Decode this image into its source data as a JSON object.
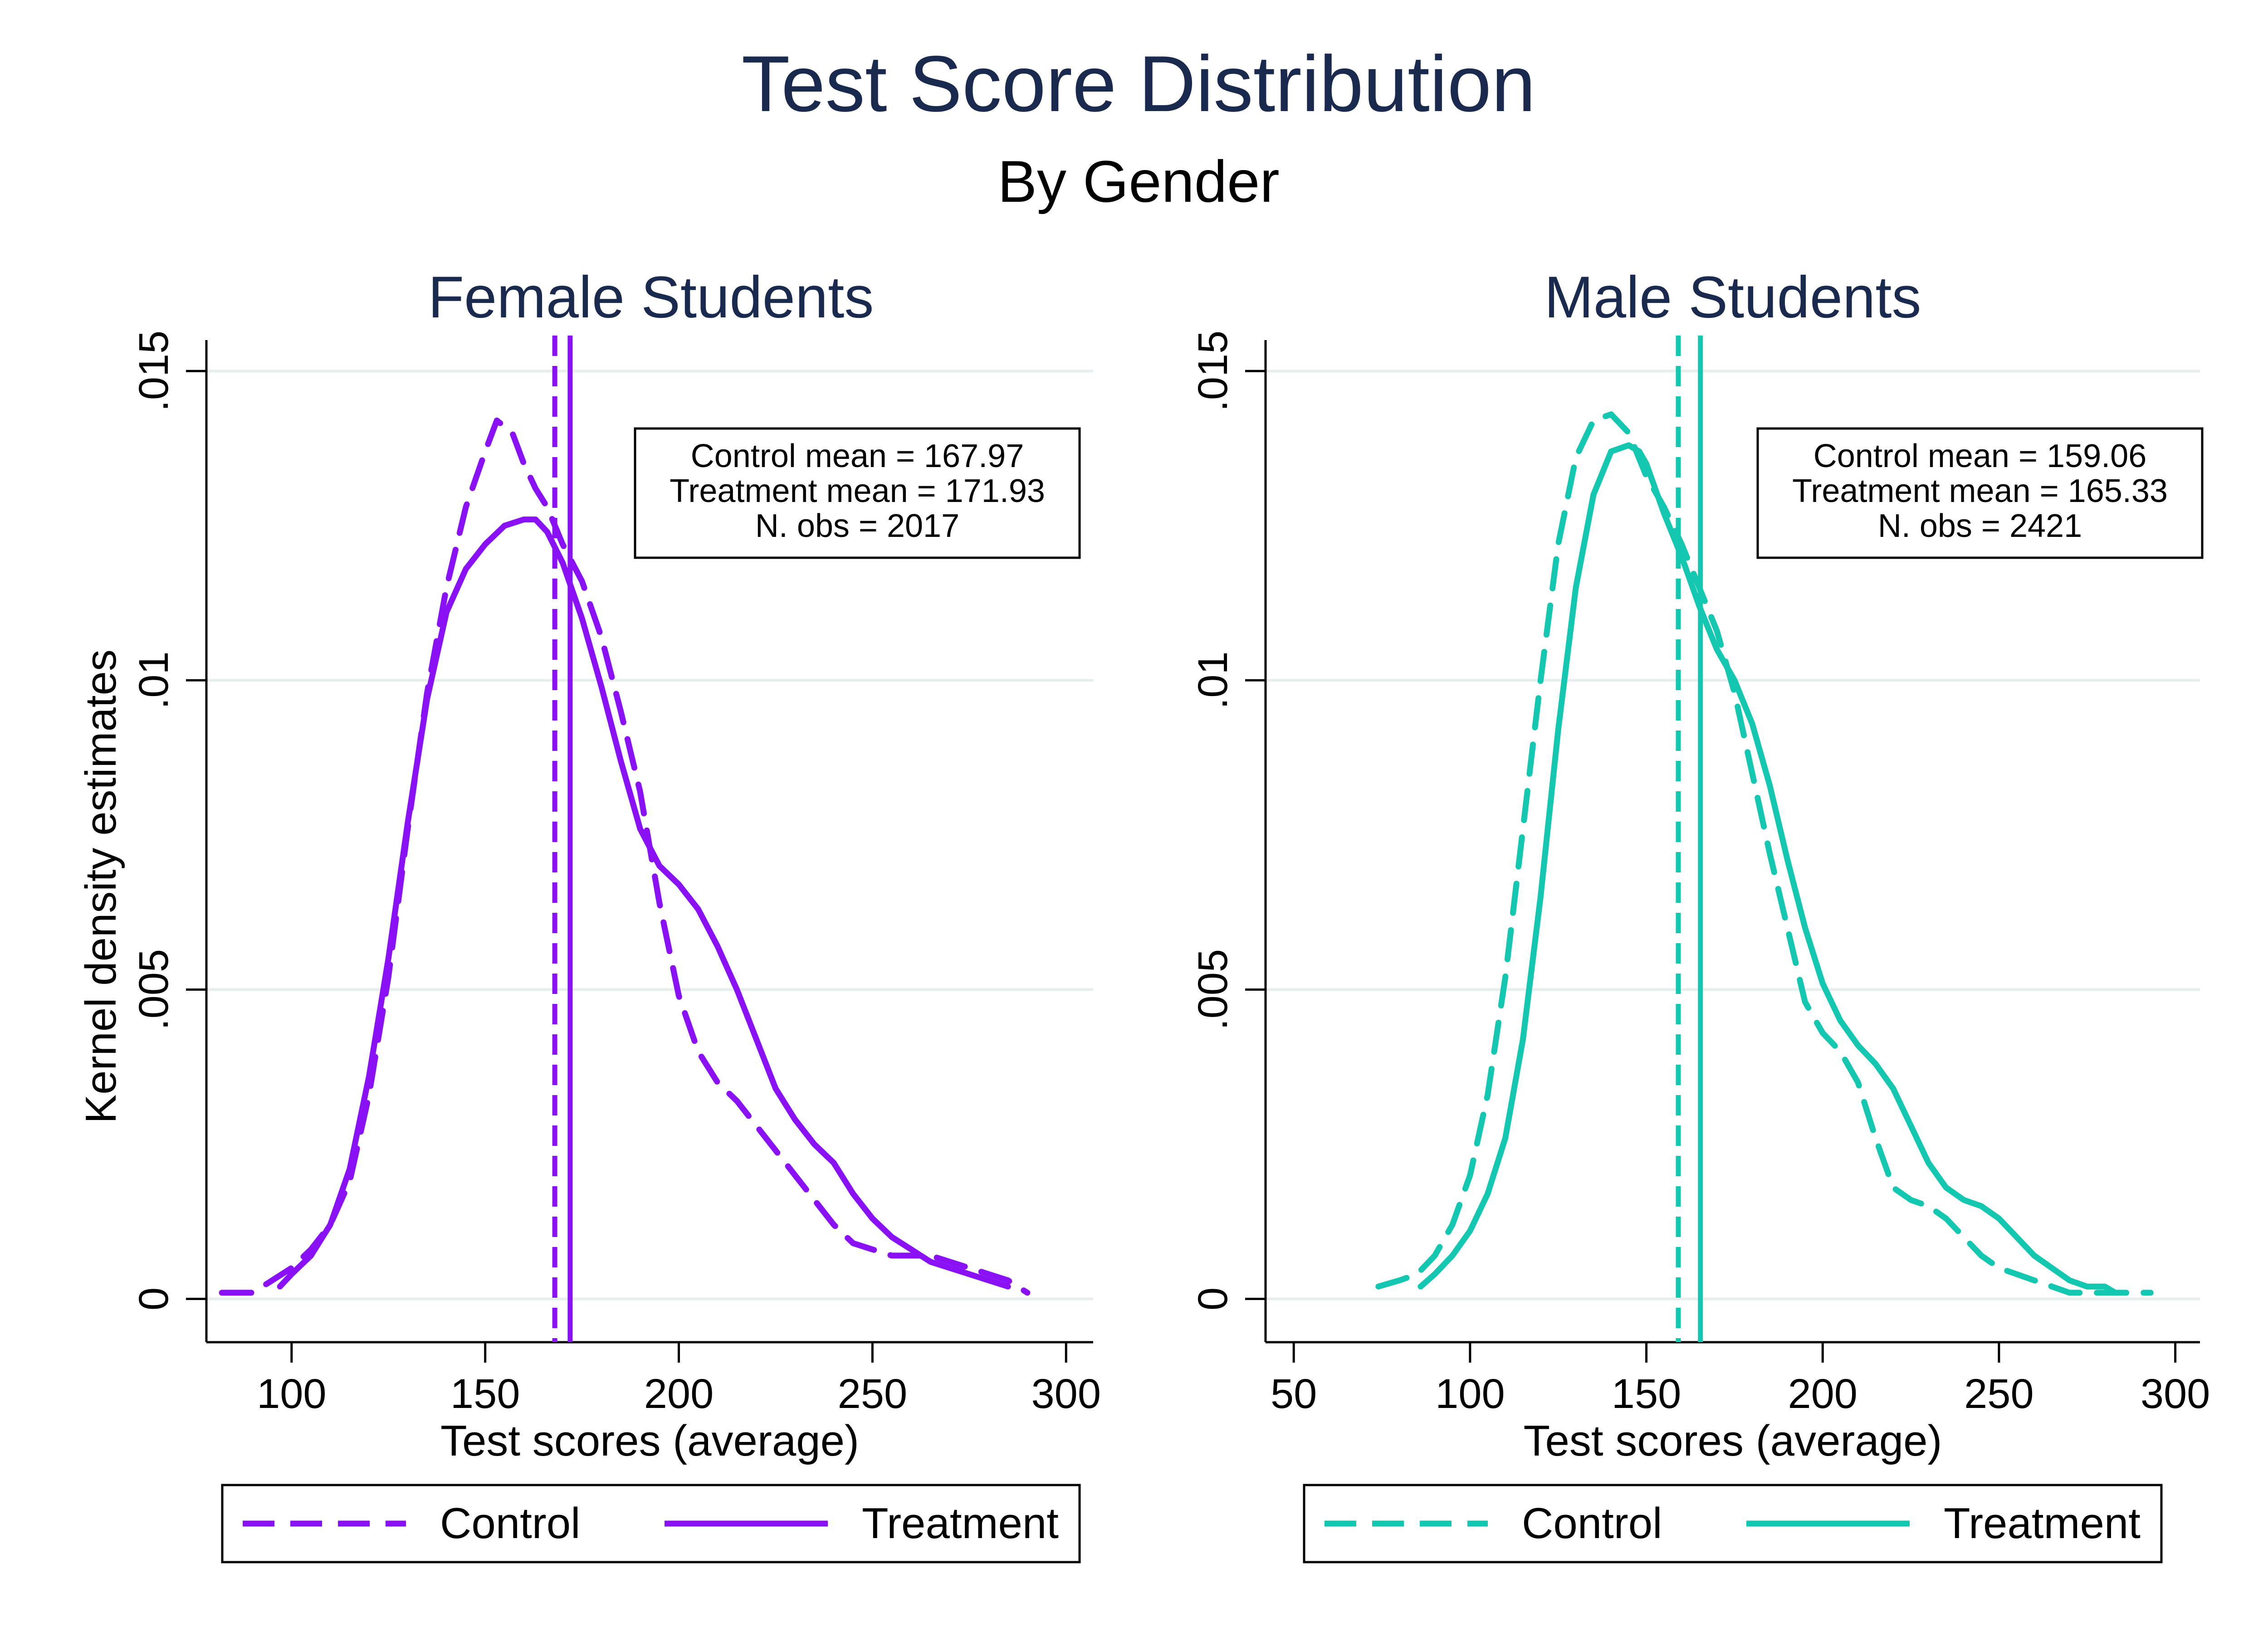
{
  "figure": {
    "title": "Test Score Distribution",
    "subtitle": "By Gender",
    "ylabel": "Kernel density estimates",
    "title_color": "#1a2a4f"
  },
  "chart_data": [
    {
      "type": "line",
      "panel_title": "Female Students",
      "xlabel": "Test scores (average)",
      "ylabel": "Kernel density estimates",
      "xlim": [
        78,
        307
      ],
      "ylim": [
        -0.0007,
        0.0155
      ],
      "xticks": [
        100,
        150,
        200,
        250,
        300
      ],
      "xtick_labels": [
        "100",
        "150",
        "200",
        "250",
        "300"
      ],
      "yticks": [
        0,
        0.005,
        0.01,
        0.015
      ],
      "ytick_labels": [
        "0",
        ".005",
        ".01",
        ".015"
      ],
      "grid": true,
      "color": "#8a10f5",
      "series": [
        {
          "name": "Control",
          "style": "dashed",
          "x": [
            82,
            90,
            95,
            100,
            105,
            110,
            115,
            120,
            125,
            130,
            135,
            140,
            145,
            150,
            153,
            157,
            160,
            163,
            166,
            170,
            175,
            180,
            185,
            190,
            195,
            200,
            205,
            210,
            215,
            220,
            225,
            230,
            235,
            240,
            245,
            250,
            255,
            260,
            265,
            270,
            275,
            280,
            285,
            290
          ],
          "y": [
            0.0001,
            0.0001,
            0.0003,
            0.0005,
            0.0008,
            0.0012,
            0.0019,
            0.0033,
            0.0052,
            0.0076,
            0.0098,
            0.0115,
            0.0128,
            0.0137,
            0.0142,
            0.014,
            0.0135,
            0.0131,
            0.0128,
            0.0122,
            0.0116,
            0.0107,
            0.0095,
            0.0082,
            0.0064,
            0.0049,
            0.004,
            0.0035,
            0.0032,
            0.0028,
            0.0024,
            0.002,
            0.0016,
            0.0012,
            0.0009,
            0.0008,
            0.0007,
            0.0007,
            0.0007,
            0.0006,
            0.0005,
            0.0004,
            0.0003,
            0.0001
          ]
        },
        {
          "name": "Treatment",
          "style": "solid",
          "x": [
            97,
            100,
            105,
            110,
            115,
            120,
            125,
            130,
            135,
            140,
            145,
            150,
            155,
            160,
            163,
            166,
            170,
            175,
            180,
            185,
            190,
            195,
            200,
            205,
            210,
            215,
            220,
            225,
            230,
            235,
            240,
            245,
            250,
            255,
            260,
            265,
            270,
            275,
            280,
            285
          ],
          "y": [
            0.0002,
            0.0004,
            0.0007,
            0.0012,
            0.0021,
            0.0036,
            0.0055,
            0.0077,
            0.0097,
            0.0111,
            0.0118,
            0.0122,
            0.0125,
            0.0126,
            0.0126,
            0.0124,
            0.0119,
            0.011,
            0.0099,
            0.0087,
            0.0076,
            0.007,
            0.0067,
            0.0063,
            0.0057,
            0.005,
            0.0042,
            0.0034,
            0.0029,
            0.0025,
            0.0022,
            0.0017,
            0.0013,
            0.001,
            0.0008,
            0.0006,
            0.0005,
            0.0004,
            0.0003,
            0.0002
          ]
        }
      ],
      "vlines": [
        {
          "name": "Control",
          "x": 167.97,
          "style": "dashed"
        },
        {
          "name": "Treatment",
          "x": 171.93,
          "style": "solid"
        }
      ],
      "annotation": [
        "Control mean = 167.97",
        "Treatment mean = 171.93",
        "N. obs = 2017"
      ],
      "legend": [
        "Control",
        "Treatment"
      ],
      "legend_position": "bottom"
    },
    {
      "type": "line",
      "panel_title": "Male Students",
      "xlabel": "Test scores (average)",
      "ylabel": "",
      "xlim": [
        42,
        307
      ],
      "ylim": [
        -0.0007,
        0.0155
      ],
      "xticks": [
        50,
        100,
        150,
        200,
        250,
        300
      ],
      "xtick_labels": [
        "50",
        "100",
        "150",
        "200",
        "250",
        "300"
      ],
      "yticks": [
        0,
        0.005,
        0.01,
        0.015
      ],
      "ytick_labels": [
        "0",
        ".005",
        ".01",
        ".015"
      ],
      "grid": true,
      "color": "#13c7b0",
      "series": [
        {
          "name": "Control",
          "style": "dashed",
          "x": [
            74,
            80,
            85,
            90,
            95,
            100,
            105,
            110,
            115,
            120,
            125,
            130,
            135,
            140,
            145,
            150,
            155,
            160,
            165,
            170,
            175,
            180,
            185,
            190,
            195,
            200,
            205,
            210,
            215,
            220,
            225,
            230,
            235,
            240,
            245,
            250,
            255,
            260,
            265,
            270,
            275,
            280,
            285,
            293
          ],
          "y": [
            0.0002,
            0.0003,
            0.0004,
            0.0007,
            0.0012,
            0.002,
            0.0033,
            0.0052,
            0.0076,
            0.01,
            0.0122,
            0.0136,
            0.0142,
            0.0143,
            0.014,
            0.0133,
            0.0128,
            0.0122,
            0.0115,
            0.0108,
            0.0098,
            0.0085,
            0.0072,
            0.006,
            0.0048,
            0.0043,
            0.004,
            0.0035,
            0.0026,
            0.0018,
            0.0016,
            0.0015,
            0.0013,
            0.001,
            0.0007,
            0.0005,
            0.0004,
            0.0003,
            0.0002,
            0.0001,
            0.0001,
            0.0001,
            0.0001,
            0.0001
          ]
        },
        {
          "name": "Treatment",
          "style": "solid",
          "x": [
            86,
            90,
            95,
            100,
            105,
            110,
            115,
            120,
            125,
            130,
            135,
            140,
            145,
            148,
            150,
            155,
            160,
            165,
            170,
            175,
            180,
            185,
            190,
            195,
            200,
            205,
            210,
            215,
            220,
            225,
            230,
            235,
            240,
            245,
            250,
            255,
            260,
            265,
            270,
            275,
            280,
            283
          ],
          "y": [
            0.0002,
            0.0004,
            0.0007,
            0.0011,
            0.0017,
            0.0026,
            0.0042,
            0.0065,
            0.0092,
            0.0115,
            0.013,
            0.0137,
            0.0138,
            0.0137,
            0.0135,
            0.0127,
            0.012,
            0.0112,
            0.0105,
            0.01,
            0.0093,
            0.0083,
            0.0071,
            0.006,
            0.0051,
            0.0045,
            0.0041,
            0.0038,
            0.0034,
            0.0028,
            0.0022,
            0.0018,
            0.0016,
            0.0015,
            0.0013,
            0.001,
            0.0007,
            0.0005,
            0.0003,
            0.0002,
            0.0002,
            0.0001
          ]
        }
      ],
      "vlines": [
        {
          "name": "Control",
          "x": 159.06,
          "style": "dashed"
        },
        {
          "name": "Treatment",
          "x": 165.33,
          "style": "solid"
        }
      ],
      "annotation": [
        "Control mean = 159.06",
        "Treatment mean = 165.33",
        "N. obs = 2421"
      ],
      "legend": [
        "Control",
        "Treatment"
      ],
      "legend_position": "bottom"
    }
  ]
}
